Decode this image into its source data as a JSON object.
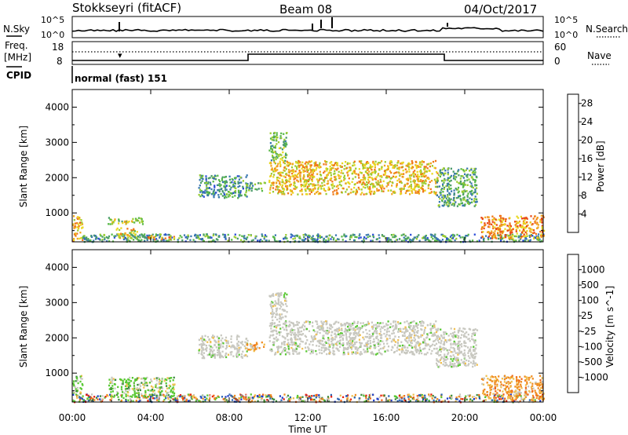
{
  "header": {
    "station": "Stokkseyri (fitACF)",
    "beam": "Beam 08",
    "date": "04/Oct/2017"
  },
  "noise_panel": {
    "left_label": "N.Sky",
    "right_label": "N.Search",
    "tick_top": "10^5",
    "tick_bottom": "10^0"
  },
  "freq_panel": {
    "left_label_line1": "Freq.",
    "left_label_line2": "[MHz]",
    "right_label": "Nave",
    "left_ticks": [
      "18",
      "8"
    ],
    "right_ticks": [
      "60",
      "0"
    ],
    "cpid_label": "CPID",
    "cpid_text": "normal (fast) 151"
  },
  "chart_data": [
    {
      "type": "heatmap",
      "name": "power",
      "ylabel": "Slant Range [km]",
      "ylim": [
        180,
        4500
      ],
      "xlim_hours": [
        0,
        24
      ],
      "yticks": [
        "1000",
        "2000",
        "3000",
        "4000"
      ],
      "colorbar": {
        "label": "Power [dB]",
        "ticks": [
          "4",
          "8",
          "12",
          "16",
          "20",
          "24",
          "28"
        ],
        "colors": [
          "#1414ff",
          "#2a4bd8",
          "#3a78b0",
          "#4a9a6a",
          "#58b848",
          "#9ccc30",
          "#e8d820",
          "#f0a820",
          "#f07818",
          "#e84818",
          "#e01010"
        ]
      },
      "regions": [
        {
          "t0": 0.0,
          "t1": 0.5,
          "r0": 200,
          "r1": 950,
          "level": 0.7
        },
        {
          "t0": 0.5,
          "t1": 24.0,
          "r0": 200,
          "r1": 420,
          "level": 0.3
        },
        {
          "t0": 1.8,
          "t1": 3.6,
          "r0": 700,
          "r1": 900,
          "level": 0.5
        },
        {
          "t0": 2.2,
          "t1": 3.3,
          "r0": 300,
          "r1": 600,
          "level": 0.6
        },
        {
          "t0": 3.8,
          "t1": 5.2,
          "r0": 250,
          "r1": 380,
          "level": 0.7
        },
        {
          "t0": 6.4,
          "t1": 8.9,
          "r0": 1450,
          "r1": 2100,
          "level": 0.3
        },
        {
          "t0": 8.8,
          "t1": 9.8,
          "r0": 1650,
          "r1": 1900,
          "level": 0.35
        },
        {
          "t0": 10.0,
          "t1": 18.6,
          "r0": 1550,
          "r1": 2500,
          "level": 0.65
        },
        {
          "t0": 10.0,
          "t1": 10.9,
          "r0": 2500,
          "r1": 3300,
          "level": 0.4
        },
        {
          "t0": 18.5,
          "t1": 20.6,
          "r0": 1200,
          "r1": 2300,
          "level": 0.35
        },
        {
          "t0": 20.8,
          "t1": 24.0,
          "r0": 300,
          "r1": 950,
          "level": 0.75
        }
      ]
    },
    {
      "type": "heatmap",
      "name": "velocity",
      "ylabel": "Slant Range [km]",
      "ylim": [
        180,
        4500
      ],
      "xlim_hours": [
        0,
        24
      ],
      "yticks": [
        "1000",
        "2000",
        "3000",
        "4000"
      ],
      "xticks": [
        "00:00",
        "04:00",
        "08:00",
        "12:00",
        "16:00",
        "20:00",
        "00:00"
      ],
      "xlabel": "Time UT",
      "colorbar": {
        "label": "Velocity [m s^-1]",
        "ticks": [
          "1000",
          "500",
          "100",
          "25",
          "-25",
          "-100",
          "-500",
          "-1000"
        ],
        "colors": [
          "#1e3cc8",
          "#2c64b4",
          "#3a8a3a",
          "#58c832",
          "#c8c8c0",
          "#f0c050",
          "#f08c20",
          "#f06418",
          "#e82010"
        ]
      },
      "regions": [
        {
          "t0": 0.0,
          "t1": 24.0,
          "r0": 200,
          "r1": 420,
          "kind": "mixed"
        },
        {
          "t0": 0.0,
          "t1": 0.5,
          "r0": 420,
          "r1": 950,
          "kind": "green"
        },
        {
          "t0": 1.8,
          "t1": 5.2,
          "r0": 350,
          "r1": 900,
          "kind": "green"
        },
        {
          "t0": 6.4,
          "t1": 8.9,
          "r0": 1450,
          "r1": 2100,
          "kind": "grey"
        },
        {
          "t0": 8.8,
          "t1": 9.8,
          "r0": 1650,
          "r1": 1900,
          "kind": "orange"
        },
        {
          "t0": 10.0,
          "t1": 18.6,
          "r0": 1550,
          "r1": 2500,
          "kind": "grey"
        },
        {
          "t0": 10.0,
          "t1": 10.9,
          "r0": 2500,
          "r1": 3300,
          "kind": "grey"
        },
        {
          "t0": 18.5,
          "t1": 20.6,
          "r0": 1200,
          "r1": 2300,
          "kind": "grey"
        },
        {
          "t0": 20.8,
          "t1": 24.0,
          "r0": 300,
          "r1": 950,
          "kind": "orange"
        }
      ]
    }
  ]
}
